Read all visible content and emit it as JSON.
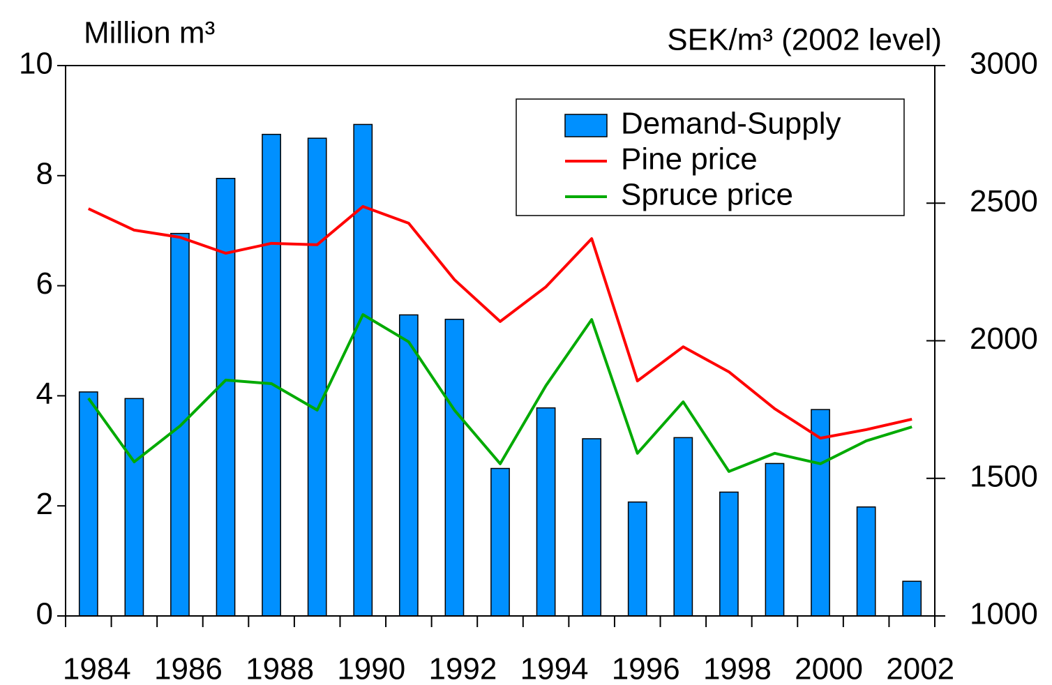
{
  "chart_data": {
    "type": "bar_line",
    "y_label": "Million m³",
    "y2_label": "SEK/m³ (2002 level)",
    "categories": [
      "1984",
      null,
      "1986",
      null,
      "1988",
      null,
      "1990",
      null,
      "1992",
      null,
      "1994",
      null,
      "1996",
      null,
      "1998",
      null,
      "2000",
      null,
      "2002"
    ],
    "series": [
      {
        "name": "Demand-Supply",
        "type": "bar",
        "color": "#0090ff",
        "values": [
          4.07,
          3.95,
          6.95,
          7.95,
          8.75,
          8.68,
          8.93,
          5.47,
          5.39,
          2.68,
          3.78,
          3.22,
          2.07,
          3.24,
          2.25,
          2.77,
          3.75,
          1.98,
          0.63
        ]
      },
      {
        "name": "Pine price",
        "type": "line",
        "axis": "y2",
        "color": "#ff0000",
        "values": [
          2480,
          2402,
          2376,
          2318,
          2354,
          2349,
          2488,
          2427,
          2222,
          2070,
          2196,
          2371,
          1854,
          1978,
          1887,
          1753,
          1646,
          1677,
          1715
        ]
      },
      {
        "name": "Spruce price",
        "type": "line",
        "axis": "y2",
        "color": "#00aa00",
        "values": [
          1791,
          1560,
          1690,
          1857,
          1844,
          1748,
          2095,
          1996,
          1748,
          1553,
          1837,
          2077,
          1591,
          1778,
          1525,
          1591,
          1553,
          1636,
          1687
        ]
      }
    ],
    "ylim": [
      0,
      10
    ],
    "yticks": [
      0,
      2,
      4,
      6,
      8,
      10
    ],
    "y2lim": [
      1000,
      3000
    ],
    "y2ticks": [
      1000,
      1500,
      2000,
      2500,
      3000
    ],
    "legend": "top-right"
  }
}
